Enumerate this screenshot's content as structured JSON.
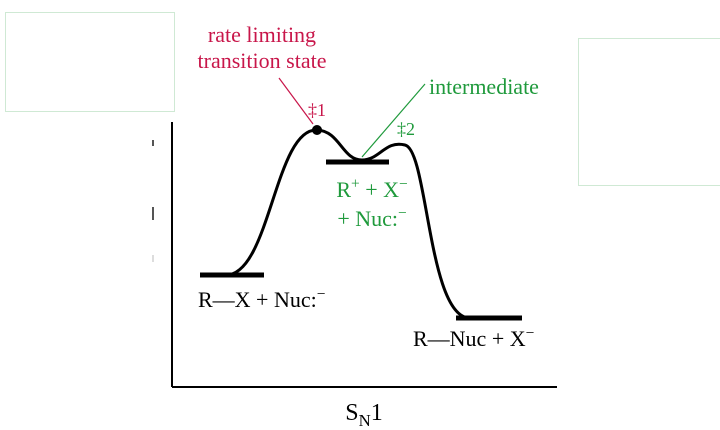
{
  "labels": {
    "rate_limiting": {
      "line1": "rate limiting",
      "line2": "transition state"
    },
    "ts1": {
      "symbol": "‡",
      "num": "1"
    },
    "ts2": {
      "symbol": "‡",
      "num": "2"
    },
    "intermediate": "intermediate",
    "intermediate_species": {
      "r": "R",
      "plus_sup": "+",
      "mid": " + X",
      "minus_sup": "−",
      "line2": "+ Nuc:",
      "line2_sup": "−"
    },
    "reactants": {
      "text": "R—X + Nuc:",
      "sup": "−"
    },
    "products": {
      "text": "R—Nuc + X",
      "sup": "−"
    },
    "xaxis": {
      "main": "S",
      "sub": "N",
      "tail": "1"
    }
  },
  "colors": {
    "annotation_red": "#c8164a",
    "annotation_green": "#1f9a3c",
    "curve": "#000000",
    "box_border": "#cfe9d4"
  }
}
